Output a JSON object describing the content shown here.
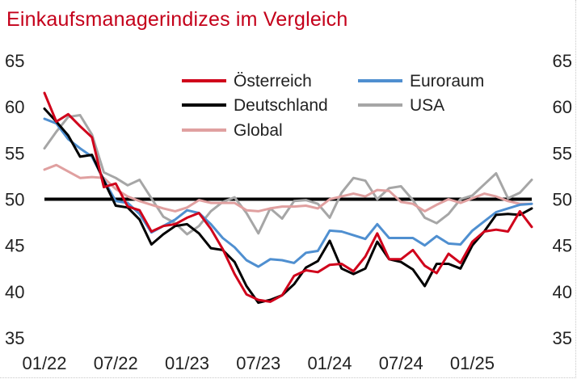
{
  "chart_data": {
    "type": "line",
    "title": "Einkaufsmanagerindizes im Vergleich",
    "xlabel": "",
    "ylabel": "",
    "ylim": [
      35,
      65
    ],
    "yticks": [
      35,
      40,
      45,
      50,
      55,
      60,
      65
    ],
    "xtick_labels": [
      "01/22",
      "07/22",
      "01/23",
      "07/23",
      "01/24",
      "07/24",
      "01/25"
    ],
    "x": [
      "2022-01",
      "2022-02",
      "2022-03",
      "2022-04",
      "2022-05",
      "2022-06",
      "2022-07",
      "2022-08",
      "2022-09",
      "2022-10",
      "2022-11",
      "2022-12",
      "2023-01",
      "2023-02",
      "2023-03",
      "2023-04",
      "2023-05",
      "2023-06",
      "2023-07",
      "2023-08",
      "2023-09",
      "2023-10",
      "2023-11",
      "2023-12",
      "2024-01",
      "2024-02",
      "2024-03",
      "2024-04",
      "2024-05",
      "2024-06",
      "2024-07",
      "2024-08",
      "2024-09",
      "2024-10",
      "2024-11",
      "2024-12",
      "2025-01",
      "2025-02",
      "2025-03",
      "2025-04",
      "2025-05",
      "2025-06"
    ],
    "reference_line": 50,
    "legend_position": "top",
    "grid": false,
    "series": [
      {
        "name": "Österreich",
        "color": "#d0021b",
        "values": [
          61.5,
          58.4,
          59.2,
          57.9,
          56.7,
          51.3,
          51.7,
          49.2,
          48.8,
          46.5,
          47.1,
          47.3,
          48.0,
          48.5,
          46.8,
          44.6,
          41.9,
          39.7,
          39.1,
          38.9,
          39.6,
          41.7,
          42.3,
          42.1,
          42.9,
          43.0,
          42.2,
          43.8,
          46.3,
          43.5,
          43.5,
          44.5,
          42.8,
          42.0,
          44.1,
          43.1,
          45.4,
          46.5,
          46.7,
          46.5,
          48.7,
          47.0
        ]
      },
      {
        "name": "Euroraum",
        "color": "#4f8fd0",
        "values": [
          58.7,
          58.2,
          56.5,
          55.5,
          54.6,
          52.1,
          49.8,
          49.6,
          48.4,
          46.4,
          47.1,
          47.8,
          48.8,
          48.5,
          47.3,
          45.8,
          44.8,
          43.4,
          42.7,
          43.5,
          43.4,
          43.1,
          44.2,
          44.4,
          46.6,
          46.5,
          46.1,
          45.7,
          47.3,
          45.8,
          45.8,
          45.8,
          45.0,
          46.0,
          45.2,
          45.1,
          46.6,
          47.6,
          48.6,
          49.0,
          49.4,
          49.5
        ]
      },
      {
        "name": "Deutschland",
        "color": "#000000",
        "values": [
          59.8,
          58.4,
          56.9,
          54.6,
          54.8,
          52.0,
          49.3,
          49.1,
          47.8,
          45.1,
          46.2,
          47.1,
          47.3,
          46.3,
          44.7,
          44.5,
          43.2,
          40.6,
          38.8,
          39.1,
          39.6,
          40.8,
          42.6,
          43.3,
          45.5,
          42.5,
          41.9,
          42.5,
          45.4,
          43.5,
          43.2,
          42.4,
          40.6,
          43.0,
          43.0,
          42.5,
          45.0,
          46.5,
          48.3,
          48.4,
          48.3,
          49.0
        ]
      },
      {
        "name": "USA",
        "color": "#a6a6a6",
        "values": [
          55.5,
          57.3,
          58.9,
          59.1,
          57.0,
          52.9,
          52.3,
          51.5,
          52.1,
          50.1,
          48.1,
          47.4,
          46.2,
          47.1,
          48.7,
          49.7,
          50.2,
          48.5,
          46.3,
          49.0,
          47.9,
          49.8,
          49.9,
          49.5,
          48.0,
          50.7,
          52.3,
          52.0,
          50.0,
          51.2,
          51.4,
          49.9,
          48.0,
          47.4,
          48.4,
          50.0,
          50.4,
          51.6,
          52.8,
          50.1,
          50.7,
          52.1
        ]
      },
      {
        "name": "Global",
        "color": "#e0a0a0",
        "values": [
          53.2,
          53.7,
          53.0,
          52.3,
          52.4,
          52.3,
          51.1,
          50.3,
          49.8,
          49.4,
          49.0,
          48.7,
          49.1,
          49.9,
          49.6,
          49.6,
          49.6,
          48.8,
          48.7,
          49.0,
          49.2,
          49.2,
          49.3,
          49.0,
          50.0,
          50.3,
          50.6,
          50.3,
          51.0,
          50.9,
          49.7,
          49.5,
          48.7,
          49.4,
          50.0,
          49.6,
          50.1,
          50.6,
          50.3,
          49.8,
          49.5,
          49.5
        ]
      }
    ]
  }
}
